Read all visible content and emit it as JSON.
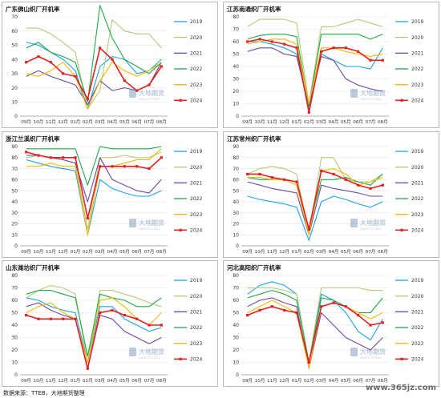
{
  "source_note": "数据来源：TTEB，大地期货整理",
  "watermark": "www.365jz.com",
  "logo": {
    "cn": "大地期货",
    "en": "DADI FUTURES"
  },
  "colors": {
    "2019": "#1aa3e8",
    "2020": "#b5c97a",
    "2021": "#6a4aa0",
    "2022": "#1fa84a",
    "2023": "#f5b800",
    "2024": "#e52020"
  },
  "chart_data": [
    {
      "type": "line",
      "title": "广东佛山织厂开机率",
      "x": [
        "09月",
        "10月",
        "11月",
        "12月",
        "01月",
        "02月",
        "03月",
        "04月",
        "05月",
        "06月",
        "07月",
        "08月"
      ],
      "ylim": [
        0,
        70
      ],
      "yticks": [
        0,
        10,
        20,
        30,
        40,
        50,
        60,
        70
      ],
      "legend": "right",
      "series": [
        {
          "name": "2019",
          "values": [
            52,
            50,
            45,
            40,
            32,
            5,
            35,
            42,
            40,
            30,
            32,
            40
          ]
        },
        {
          "name": "2020",
          "values": [
            62,
            62,
            58,
            52,
            45,
            5,
            18,
            68,
            60,
            58,
            58,
            48
          ]
        },
        {
          "name": "2021",
          "values": [
            28,
            32,
            28,
            25,
            22,
            8,
            25,
            18,
            20,
            18,
            22,
            38
          ]
        },
        {
          "name": "2022",
          "values": [
            48,
            52,
            45,
            42,
            38,
            10,
            78,
            55,
            40,
            35,
            30,
            38
          ]
        },
        {
          "name": "2023",
          "values": [
            30,
            28,
            32,
            38,
            28,
            5,
            25,
            38,
            32,
            28,
            32,
            38
          ]
        },
        {
          "name": "2024",
          "values": [
            38,
            42,
            38,
            30,
            28,
            12,
            48,
            40,
            25,
            18,
            22,
            35
          ]
        }
      ]
    },
    {
      "type": "line",
      "title": "江苏南通织厂开机率",
      "x": [
        "09月",
        "10月",
        "11月",
        "12月",
        "01月",
        "02月",
        "03月",
        "04月",
        "05月",
        "06月",
        "07月",
        "08月"
      ],
      "ylim": [
        0,
        80
      ],
      "yticks": [
        0,
        10,
        20,
        30,
        40,
        50,
        60,
        70,
        80
      ],
      "legend": "right",
      "series": [
        {
          "name": "2019",
          "values": [
            60,
            60,
            58,
            55,
            50,
            5,
            50,
            45,
            40,
            40,
            38,
            55
          ]
        },
        {
          "name": "2020",
          "values": [
            72,
            78,
            78,
            78,
            75,
            10,
            72,
            72,
            75,
            78,
            75,
            72
          ]
        },
        {
          "name": "2021",
          "values": [
            52,
            55,
            55,
            50,
            48,
            8,
            48,
            45,
            30,
            25,
            22,
            20
          ]
        },
        {
          "name": "2022",
          "values": [
            62,
            65,
            66,
            66,
            64,
            8,
            66,
            66,
            66,
            66,
            62,
            66
          ]
        },
        {
          "name": "2023",
          "values": [
            58,
            60,
            62,
            62,
            58,
            10,
            55,
            55,
            52,
            50,
            48,
            50
          ]
        },
        {
          "name": "2024",
          "values": [
            60,
            62,
            60,
            58,
            55,
            3,
            52,
            55,
            55,
            52,
            45,
            45
          ]
        }
      ]
    },
    {
      "type": "line",
      "title": "浙江兰溪织厂开机率",
      "x": [
        "09月",
        "10月",
        "11月",
        "12月",
        "01月",
        "02月",
        "03月",
        "04月",
        "05月",
        "06月",
        "07月",
        "08月"
      ],
      "ylim": [
        0,
        90
      ],
      "yticks": [
        0,
        10,
        20,
        30,
        40,
        50,
        60,
        70,
        80,
        90
      ],
      "legend": "right",
      "series": [
        {
          "name": "2019",
          "values": [
            78,
            75,
            72,
            70,
            68,
            10,
            60,
            52,
            48,
            45,
            45,
            50
          ]
        },
        {
          "name": "2020",
          "values": [
            80,
            82,
            80,
            78,
            75,
            15,
            80,
            80,
            82,
            80,
            80,
            85
          ]
        },
        {
          "name": "2021",
          "values": [
            82,
            82,
            80,
            78,
            75,
            40,
            80,
            60,
            55,
            50,
            48,
            60
          ]
        },
        {
          "name": "2022",
          "values": [
            88,
            88,
            88,
            88,
            88,
            55,
            90,
            88,
            88,
            88,
            88,
            90
          ]
        },
        {
          "name": "2023",
          "values": [
            72,
            72,
            75,
            72,
            72,
            10,
            72,
            72,
            75,
            78,
            78,
            88
          ]
        },
        {
          "name": "2024",
          "values": [
            85,
            82,
            80,
            80,
            80,
            25,
            72,
            72,
            72,
            72,
            70,
            80
          ]
        }
      ]
    },
    {
      "type": "line",
      "title": "江苏常州织厂开机率",
      "x": [
        "09月",
        "10月",
        "11月",
        "12月",
        "01月",
        "02月",
        "03月",
        "04月",
        "05月",
        "06月",
        "07月",
        "08月"
      ],
      "ylim": [
        0,
        90
      ],
      "yticks": [
        0,
        10,
        20,
        30,
        40,
        50,
        60,
        70,
        80,
        90
      ],
      "legend": "right",
      "series": [
        {
          "name": "2019",
          "values": [
            45,
            42,
            40,
            38,
            35,
            5,
            40,
            45,
            42,
            38,
            35,
            40
          ]
        },
        {
          "name": "2020",
          "values": [
            65,
            70,
            72,
            70,
            65,
            10,
            80,
            80,
            60,
            58,
            58,
            65
          ]
        },
        {
          "name": "2021",
          "values": [
            58,
            55,
            52,
            50,
            48,
            10,
            55,
            52,
            50,
            48,
            45,
            45
          ]
        },
        {
          "name": "2022",
          "values": [
            62,
            60,
            60,
            60,
            58,
            15,
            60,
            60,
            62,
            58,
            55,
            65
          ]
        },
        {
          "name": "2023",
          "values": [
            62,
            62,
            60,
            60,
            55,
            10,
            68,
            70,
            65,
            55,
            58,
            62
          ]
        },
        {
          "name": "2024",
          "values": [
            65,
            65,
            62,
            60,
            58,
            15,
            68,
            65,
            60,
            55,
            52,
            55
          ]
        }
      ]
    },
    {
      "type": "line",
      "title": "山东潍坊织厂开机率",
      "x": [
        "09月",
        "10月",
        "11月",
        "12月",
        "01月",
        "02月",
        "03月",
        "04月",
        "05月",
        "06月",
        "07月",
        "08月"
      ],
      "ylim": [
        0,
        80
      ],
      "yticks": [
        0,
        10,
        20,
        30,
        40,
        50,
        60,
        70,
        80
      ],
      "legend": "right",
      "series": [
        {
          "name": "2019",
          "values": [
            62,
            60,
            55,
            52,
            50,
            10,
            55,
            55,
            45,
            40,
            35,
            38
          ]
        },
        {
          "name": "2020",
          "values": [
            62,
            68,
            72,
            70,
            65,
            10,
            68,
            68,
            65,
            62,
            58,
            55
          ]
        },
        {
          "name": "2021",
          "values": [
            55,
            58,
            52,
            48,
            45,
            5,
            48,
            45,
            35,
            30,
            25,
            30
          ]
        },
        {
          "name": "2022",
          "values": [
            65,
            68,
            68,
            65,
            62,
            15,
            65,
            62,
            60,
            55,
            55,
            62
          ]
        },
        {
          "name": "2023",
          "values": [
            50,
            55,
            58,
            50,
            45,
            10,
            60,
            62,
            55,
            45,
            40,
            50
          ]
        },
        {
          "name": "2024",
          "values": [
            48,
            45,
            45,
            45,
            45,
            5,
            50,
            52,
            48,
            45,
            40,
            40
          ]
        }
      ]
    },
    {
      "type": "line",
      "title": "河北高阳织厂开机率",
      "x": [
        "09月",
        "10月",
        "11月",
        "12月",
        "01月",
        "02月",
        "03月",
        "04月",
        "05月",
        "06月",
        "07月",
        "08月"
      ],
      "ylim": [
        0,
        80
      ],
      "yticks": [
        0,
        10,
        20,
        30,
        40,
        50,
        60,
        70,
        80
      ],
      "legend": "right",
      "series": [
        {
          "name": "2019",
          "values": [
            65,
            72,
            75,
            72,
            65,
            10,
            65,
            60,
            50,
            35,
            28,
            45
          ]
        },
        {
          "name": "2020",
          "values": [
            70,
            70,
            70,
            68,
            65,
            10,
            70,
            70,
            70,
            70,
            68,
            68
          ]
        },
        {
          "name": "2021",
          "values": [
            55,
            60,
            62,
            58,
            55,
            5,
            50,
            40,
            30,
            25,
            20,
            30
          ]
        },
        {
          "name": "2022",
          "values": [
            62,
            65,
            68,
            65,
            60,
            10,
            62,
            60,
            55,
            50,
            50,
            62
          ]
        },
        {
          "name": "2023",
          "values": [
            50,
            55,
            60,
            55,
            50,
            5,
            55,
            58,
            55,
            50,
            45,
            50
          ]
        },
        {
          "name": "2024",
          "values": [
            48,
            52,
            55,
            52,
            50,
            10,
            55,
            58,
            55,
            48,
            40,
            42
          ]
        }
      ]
    }
  ]
}
